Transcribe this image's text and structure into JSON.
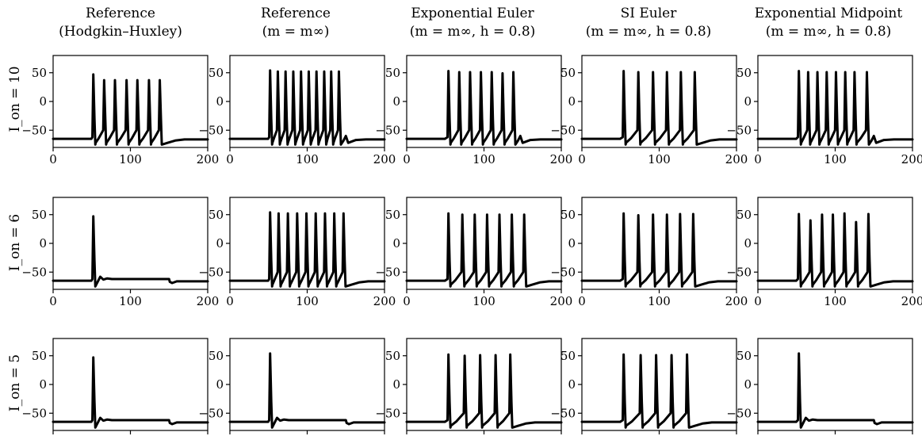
{
  "figure": {
    "columns": [
      {
        "title_lines": [
          "Reference",
          "(Hodgkin–Huxley)"
        ]
      },
      {
        "title_lines": [
          "Reference",
          "(m = m∞)"
        ]
      },
      {
        "title_lines": [
          "Exponential Euler",
          "(m = m∞, h = 0.8)"
        ]
      },
      {
        "title_lines": [
          "SI Euler",
          "(m = m∞, h = 0.8)"
        ]
      },
      {
        "title_lines": [
          "Exponential Midpoint",
          "(m = m∞, h = 0.8)"
        ]
      }
    ],
    "rows": [
      {
        "label": "I_on = 10"
      },
      {
        "label": "I_on = 6"
      },
      {
        "label": "I_on = 5"
      }
    ],
    "xticks": [
      "0",
      "100",
      "200"
    ],
    "yticks": [
      "50",
      "0",
      "−50"
    ]
  },
  "colors": {
    "trace": "#000000",
    "frame": "#000000",
    "background": "#ffffff"
  },
  "chart_data": {
    "type": "line",
    "layout": "grid 3x5 of small-multiple line plots",
    "xlim": [
      0,
      200
    ],
    "ylim": [
      -80,
      80
    ],
    "xtick_values": [
      0,
      100,
      200
    ],
    "ytick_values": [
      50,
      0,
      -50
    ],
    "resting_potential": -65,
    "stimulus_window": [
      50,
      150
    ],
    "panels": [
      [
        {
          "spikes": [
            [
              52,
              47
            ],
            [
              66,
              37
            ],
            [
              80,
              37
            ],
            [
              95,
              37
            ],
            [
              109,
              37
            ],
            [
              124,
              37
            ],
            [
              138,
              37
            ]
          ],
          "tail": "slow"
        },
        {
          "spikes": [
            [
              52,
              54
            ],
            [
              62,
              52
            ],
            [
              72,
              52
            ],
            [
              82,
              52
            ],
            [
              92,
              52
            ],
            [
              102,
              52
            ],
            [
              112,
              52
            ],
            [
              122,
              52
            ],
            [
              131,
              52
            ],
            [
              141,
              52
            ]
          ],
          "tail": "ripple"
        },
        {
          "spikes": [
            [
              54,
              53
            ],
            [
              68,
              51
            ],
            [
              82,
              51
            ],
            [
              96,
              51
            ],
            [
              110,
              51
            ],
            [
              124,
              49
            ],
            [
              138,
              51
            ]
          ],
          "tail": "ripple"
        },
        {
          "spikes": [
            [
              54,
              53
            ],
            [
              73,
              51
            ],
            [
              92,
              51
            ],
            [
              110,
              51
            ],
            [
              128,
              51
            ],
            [
              146,
              51
            ]
          ],
          "tail": "slow"
        },
        {
          "spikes": [
            [
              53,
              53
            ],
            [
              65,
              51
            ],
            [
              77,
              51
            ],
            [
              89,
              51
            ],
            [
              101,
              51
            ],
            [
              113,
              51
            ],
            [
              125,
              51
            ],
            [
              141,
              51
            ]
          ],
          "tail": "ripple"
        }
      ],
      [
        {
          "spikes": [
            [
              52,
              47
            ]
          ],
          "tail": "plateau"
        },
        {
          "spikes": [
            [
              52,
              54
            ],
            [
              63,
              52
            ],
            [
              75,
              52
            ],
            [
              87,
              52
            ],
            [
              99,
              52
            ],
            [
              111,
              52
            ],
            [
              123,
              52
            ],
            [
              135,
              52
            ],
            [
              147,
              52
            ]
          ],
          "tail": "slow"
        },
        {
          "spikes": [
            [
              54,
              52
            ],
            [
              72,
              50
            ],
            [
              88,
              50
            ],
            [
              104,
              50
            ],
            [
              120,
              50
            ],
            [
              136,
              50
            ],
            [
              152,
              50
            ]
          ],
          "tail": "slow"
        },
        {
          "spikes": [
            [
              54,
              52
            ],
            [
              73,
              49
            ],
            [
              92,
              50
            ],
            [
              110,
              50
            ],
            [
              127,
              51
            ],
            [
              144,
              51
            ]
          ],
          "tail": "slow"
        },
        {
          "spikes": [
            [
              53,
              51
            ],
            [
              68,
              40
            ],
            [
              83,
              50
            ],
            [
              97,
              50
            ],
            [
              112,
              52
            ],
            [
              127,
              37
            ],
            [
              143,
              51
            ]
          ],
          "tail": "slow"
        }
      ],
      [
        {
          "spikes": [
            [
              52,
              47
            ]
          ],
          "tail": "plateau"
        },
        {
          "spikes": [
            [
              52,
              54
            ]
          ],
          "tail": "plateau"
        },
        {
          "spikes": [
            [
              54,
              52
            ],
            [
              75,
              50
            ],
            [
              95,
              51
            ],
            [
              115,
              51
            ],
            [
              134,
              52
            ]
          ],
          "tail": "slow"
        },
        {
          "spikes": [
            [
              54,
              52
            ],
            [
              76,
              51
            ],
            [
              96,
              51
            ],
            [
              116,
              51
            ],
            [
              136,
              52
            ]
          ],
          "tail": "slow"
        },
        {
          "spikes": [
            [
              53,
              54
            ]
          ],
          "tail": "plateau"
        }
      ]
    ]
  }
}
